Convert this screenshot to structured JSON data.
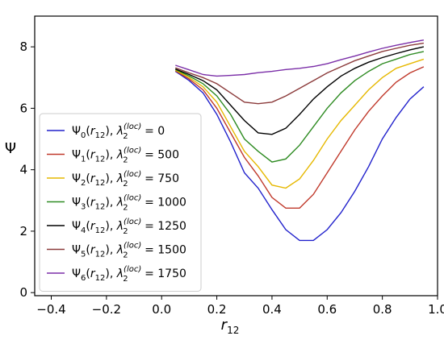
{
  "chart_data": {
    "type": "line",
    "xlabel": "r",
    "xlabel_sub": "12",
    "ylabel": "Ψ",
    "xlim": [
      -0.46,
      1.0
    ],
    "ylim": [
      -0.1,
      9.0
    ],
    "xticks": [
      -0.4,
      -0.2,
      0.0,
      0.2,
      0.4,
      0.6,
      0.8,
      1.0
    ],
    "xtick_labels": [
      "−0.4",
      "−0.2",
      "0.0",
      "0.2",
      "0.4",
      "0.6",
      "0.8",
      "1.0"
    ],
    "yticks": [
      0,
      2,
      4,
      6,
      8
    ],
    "ytick_labels": [
      "0",
      "2",
      "4",
      "6",
      "8"
    ],
    "grid": false,
    "legend_position": "left",
    "x": [
      0.05,
      0.1,
      0.15,
      0.2,
      0.25,
      0.3,
      0.35,
      0.4,
      0.45,
      0.5,
      0.55,
      0.6,
      0.65,
      0.7,
      0.75,
      0.8,
      0.85,
      0.9,
      0.95
    ],
    "series": [
      {
        "name": "Ψ0(r12), λ2(loc) = 0",
        "legend": {
          "psi": "0",
          "lambda": "0"
        },
        "color": "#2222cc",
        "values": [
          7.2,
          6.9,
          6.5,
          5.8,
          4.9,
          3.9,
          3.4,
          2.7,
          2.05,
          1.7,
          1.7,
          2.05,
          2.6,
          3.3,
          4.1,
          5.0,
          5.7,
          6.3,
          6.7
        ]
      },
      {
        "name": "Ψ1(r12), λ2(loc) = 500",
        "legend": {
          "psi": "1",
          "lambda": "500"
        },
        "color": "#c0392b",
        "values": [
          7.22,
          6.95,
          6.6,
          6.0,
          5.2,
          4.4,
          3.8,
          3.1,
          2.75,
          2.75,
          3.2,
          3.9,
          4.6,
          5.3,
          5.9,
          6.4,
          6.85,
          7.15,
          7.35
        ]
      },
      {
        "name": "Ψ2(r12), λ2(loc) = 750",
        "legend": {
          "psi": "2",
          "lambda": "750"
        },
        "color": "#e6b800",
        "values": [
          7.24,
          7.0,
          6.7,
          6.2,
          5.4,
          4.6,
          4.1,
          3.5,
          3.4,
          3.7,
          4.3,
          5.0,
          5.6,
          6.1,
          6.6,
          7.0,
          7.3,
          7.45,
          7.6
        ]
      },
      {
        "name": "Ψ3(r12), λ2(loc) = 1000",
        "legend": {
          "psi": "3",
          "lambda": "1000"
        },
        "color": "#2e8b22",
        "values": [
          7.26,
          7.05,
          6.8,
          6.4,
          5.8,
          5.0,
          4.6,
          4.25,
          4.35,
          4.8,
          5.4,
          6.0,
          6.5,
          6.9,
          7.2,
          7.45,
          7.6,
          7.75,
          7.85
        ]
      },
      {
        "name": "Ψ4(r12), λ2(loc) = 1250",
        "legend": {
          "psi": "4",
          "lambda": "1250"
        },
        "color": "#000000",
        "values": [
          7.28,
          7.1,
          6.9,
          6.6,
          6.1,
          5.6,
          5.2,
          5.15,
          5.35,
          5.8,
          6.3,
          6.7,
          7.05,
          7.3,
          7.5,
          7.65,
          7.78,
          7.9,
          8.0
        ]
      },
      {
        "name": "Ψ5(r12), λ2(loc) = 1500",
        "legend": {
          "psi": "5",
          "lambda": "1500"
        },
        "color": "#8b3a3a",
        "values": [
          7.32,
          7.15,
          7.0,
          6.8,
          6.5,
          6.2,
          6.15,
          6.2,
          6.4,
          6.65,
          6.9,
          7.15,
          7.35,
          7.55,
          7.7,
          7.85,
          7.95,
          8.05,
          8.12
        ]
      },
      {
        "name": "Ψ6(r12), λ2(loc) = 1750",
        "legend": {
          "psi": "6",
          "lambda": "1750"
        },
        "color": "#7b2fa8",
        "values": [
          7.4,
          7.25,
          7.1,
          7.05,
          7.07,
          7.1,
          7.16,
          7.2,
          7.26,
          7.3,
          7.36,
          7.45,
          7.58,
          7.7,
          7.83,
          7.95,
          8.05,
          8.14,
          8.22
        ]
      }
    ]
  }
}
